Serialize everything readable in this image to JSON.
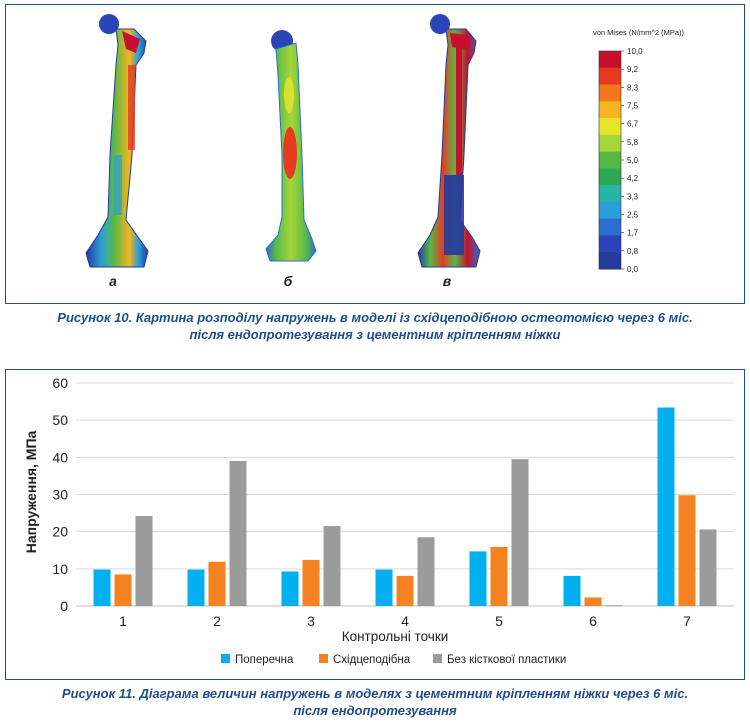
{
  "figure10": {
    "caption_line1": "Рисунок 10. Картина розподілу напружень в моделі із східцеподібною остеотомією через 6 міс.",
    "caption_line2": "після ендопротезування з цементним кріпленням ніжки",
    "panel_labels": [
      "а",
      "б",
      "в"
    ],
    "colorbar": {
      "title": "von Mises (N/mm^2 (MPa))",
      "ticks": [
        "10,0",
        "9,2",
        "8,3",
        "7,5",
        "6,7",
        "5,8",
        "5,0",
        "4,2",
        "3,3",
        "2,5",
        "1,7",
        "0,8",
        "0,0"
      ],
      "colors": [
        "#c8102e",
        "#e53b1f",
        "#f2761b",
        "#f5b520",
        "#e7e52a",
        "#a6d63a",
        "#57b947",
        "#2fa84f",
        "#27b3a6",
        "#2a9fd8",
        "#2a6fcf",
        "#2b45b8",
        "#263a9e"
      ]
    }
  },
  "figure11": {
    "caption_line1": "Рисунок 11. Діаграма величин напружень в моделях з цементним кріпленням ніжки через 6 міс.",
    "caption_line2": "після ендопротезування"
  },
  "chart_data": {
    "type": "bar",
    "categories": [
      "1",
      "2",
      "3",
      "4",
      "5",
      "6",
      "7"
    ],
    "series": [
      {
        "name": "Поперечна",
        "color": "#00b0f0",
        "values": [
          9.8,
          9.8,
          9.3,
          9.8,
          14.7,
          8.1,
          53.4
        ]
      },
      {
        "name": "Східцеподібна",
        "color": "#f58220",
        "values": [
          8.5,
          11.9,
          12.4,
          8.1,
          15.9,
          2.3,
          29.8
        ]
      },
      {
        "name": "Без кісткової пластики",
        "color": "#9b9b9b",
        "values": [
          24.2,
          39.0,
          21.5,
          18.5,
          39.5,
          0.2,
          20.6
        ]
      }
    ],
    "xlabel": "Контрольні точки",
    "ylabel": "Напруження, МПа",
    "ylim": [
      0,
      60
    ],
    "yticks": [
      "0",
      "10",
      "20",
      "30",
      "40",
      "50",
      "60"
    ],
    "grid": true,
    "legend": "bottom"
  }
}
